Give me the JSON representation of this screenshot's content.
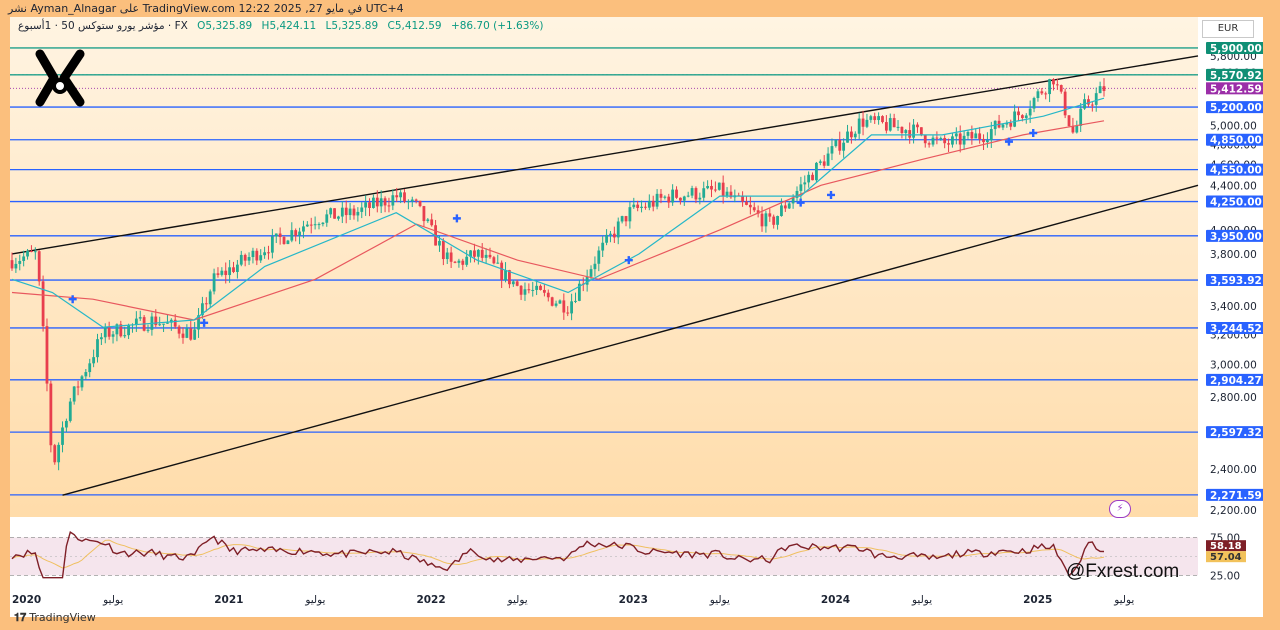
{
  "header": {
    "publisher_line": "نشر Ayman_Alnagar على TradingView.com في مايو 27, 2025 12:22 UTC+4",
    "symbol": "مؤشر يورو ستوكس 50 · 1أسبوع · FX",
    "open": "O5,325.89",
    "high": "H5,424.11",
    "low": "L5,325.89",
    "close": "C5,412.59",
    "change": "+86.70 (+1.63%)",
    "currency": "EUR"
  },
  "colors": {
    "hline": "#2962ff",
    "channel": "#111111",
    "ema_fast": "#26b7c8",
    "ema_slow": "#e8585e",
    "candle_up": "#22ab94",
    "candle_down": "#e83e4d",
    "rsi": "#7e1f27",
    "rsi_ma": "#f0c060",
    "price_badge": "#9b2ea8",
    "level_badge": "#2962ff"
  },
  "axis": {
    "ticks": [
      "5,800.00",
      "5,600.00",
      "5,000.00",
      "4,800.00",
      "4,600.00",
      "4,400.00",
      "4,000.00",
      "3,800.00",
      "3,400.00",
      "3,200.00",
      "3,000.00",
      "2,800.00",
      "2,400.00",
      "2,200.00"
    ],
    "levels": [
      "5,900.00",
      "5,570.92",
      "5,200.00",
      "4,850.00",
      "4,550.00",
      "4,250.00",
      "3,950.00",
      "3,593.92",
      "3,244.52",
      "2,904.27",
      "2,597.32",
      "2,271.59"
    ],
    "current_price": "5,412.59",
    "rsi_ticks": [
      "75.00",
      "25.00"
    ],
    "rsi_value": "58.18",
    "rsi_ma_value": "57.04"
  },
  "time_axis": [
    "2020",
    "يوليو",
    "2021",
    "يوليو",
    "2022",
    "يوليو",
    "2023",
    "يوليو",
    "2024",
    "يوليو",
    "2025",
    "يوليو"
  ],
  "chart_data": {
    "type": "candlestick",
    "title": "مؤشر يورو ستوكس 50 · 1أسبوع · FX",
    "ylim": [
      2100,
      6000
    ],
    "yscale": "log",
    "price_path": [
      [
        2020.0,
        3750
      ],
      [
        2020.12,
        3800
      ],
      [
        2020.2,
        2400
      ],
      [
        2020.28,
        2750
      ],
      [
        2020.45,
        3200
      ],
      [
        2020.7,
        3300
      ],
      [
        2020.9,
        3200
      ],
      [
        2021.0,
        3600
      ],
      [
        2021.25,
        3850
      ],
      [
        2021.5,
        4100
      ],
      [
        2021.7,
        4150
      ],
      [
        2021.9,
        4300
      ],
      [
        2022.0,
        4200
      ],
      [
        2022.17,
        3700
      ],
      [
        2022.3,
        3800
      ],
      [
        2022.5,
        3550
      ],
      [
        2022.75,
        3400
      ],
      [
        2022.9,
        3800
      ],
      [
        2023.05,
        4150
      ],
      [
        2023.25,
        4300
      ],
      [
        2023.5,
        4350
      ],
      [
        2023.75,
        4050
      ],
      [
        2023.95,
        4500
      ],
      [
        2024.2,
        5050
      ],
      [
        2024.45,
        4950
      ],
      [
        2024.6,
        4800
      ],
      [
        2024.8,
        4900
      ],
      [
        2025.0,
        5150
      ],
      [
        2025.15,
        5540
      ],
      [
        2025.25,
        4900
      ],
      [
        2025.3,
        5200
      ],
      [
        2025.4,
        5412
      ]
    ],
    "ema_fast_path": [
      [
        2020.0,
        3600
      ],
      [
        2020.2,
        3500
      ],
      [
        2020.45,
        3250
      ],
      [
        2020.9,
        3300
      ],
      [
        2021.25,
        3700
      ],
      [
        2021.9,
        4150
      ],
      [
        2022.3,
        3750
      ],
      [
        2022.75,
        3500
      ],
      [
        2023.1,
        3800
      ],
      [
        2023.5,
        4300
      ],
      [
        2023.9,
        4300
      ],
      [
        2024.25,
        4900
      ],
      [
        2024.6,
        4900
      ],
      [
        2025.1,
        5100
      ],
      [
        2025.4,
        5300
      ]
    ],
    "ema_slow_path": [
      [
        2020.0,
        3500
      ],
      [
        2020.4,
        3450
      ],
      [
        2020.9,
        3300
      ],
      [
        2021.5,
        3600
      ],
      [
        2022.0,
        4050
      ],
      [
        2022.5,
        3750
      ],
      [
        2022.9,
        3600
      ],
      [
        2023.5,
        4000
      ],
      [
        2024.0,
        4400
      ],
      [
        2024.5,
        4650
      ],
      [
        2025.0,
        4900
      ],
      [
        2025.4,
        5050
      ]
    ],
    "signal_markers": [
      [
        2020.3,
        3450
      ],
      [
        2020.95,
        3280
      ],
      [
        2022.2,
        4100
      ],
      [
        2023.05,
        3750
      ],
      [
        2023.9,
        4240
      ],
      [
        2024.05,
        4310
      ],
      [
        2024.93,
        4830
      ],
      [
        2025.05,
        4920
      ]
    ],
    "rsi": {
      "last": 58.18,
      "ma": 57.04,
      "overbought": 75,
      "oversold": 25
    }
  },
  "branding": {
    "tradingview": "TradingView",
    "watermark": "@Fxrest.com"
  }
}
